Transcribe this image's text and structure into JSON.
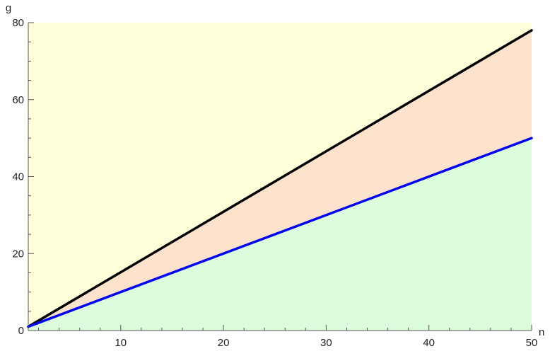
{
  "chart_data": {
    "type": "area",
    "xlabel": "n",
    "ylabel": "g",
    "xlim": [
      1,
      50
    ],
    "ylim": [
      0,
      80
    ],
    "x_major_ticks": [
      10,
      20,
      30,
      40,
      50
    ],
    "y_major_ticks": [
      0,
      20,
      40,
      60,
      80
    ],
    "x_tick_labels": [
      "10",
      "20",
      "30",
      "40",
      "50"
    ],
    "y_tick_labels": [
      "0",
      "20",
      "40",
      "60",
      "80"
    ],
    "grid": false,
    "series": [
      {
        "color": "#000000",
        "x": [
          1,
          50
        ],
        "y": [
          1,
          78
        ]
      },
      {
        "color": "#0000ff",
        "x": [
          1,
          50
        ],
        "y": [
          1,
          50
        ]
      }
    ],
    "regions": [
      {
        "color": "#ffffd9",
        "bounds": "above black line"
      },
      {
        "color": "#fde3cc",
        "bounds": "between black and blue lines"
      },
      {
        "color": "#dcfddc",
        "bounds": "below blue line"
      }
    ]
  }
}
